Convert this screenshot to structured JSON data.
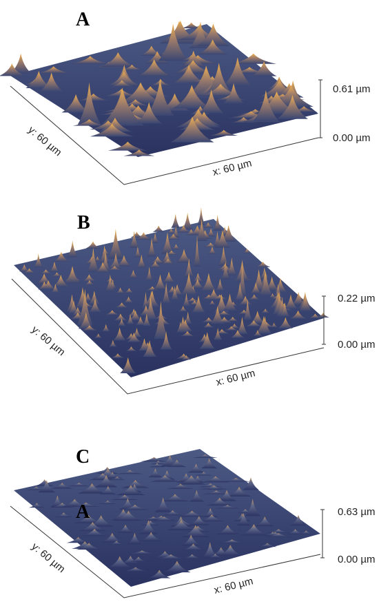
{
  "panels": [
    {
      "letter": "A",
      "y_axis": "y: 60 µm",
      "x_axis": "x: 60 µm",
      "z_max": "0.61 µm",
      "z_min": "0.00 µm"
    },
    {
      "letter": "B",
      "y_axis": "y: 60 µm",
      "x_axis": "x: 60 µm",
      "z_max": "0.22 µm",
      "z_min": "0.00 µm"
    },
    {
      "letter": "C",
      "overlay_letter": "A",
      "y_axis": "y: 60 µm",
      "x_axis": "x: 60 µm",
      "z_max": "0.63 µm",
      "z_min": "0.00 µm"
    }
  ]
}
